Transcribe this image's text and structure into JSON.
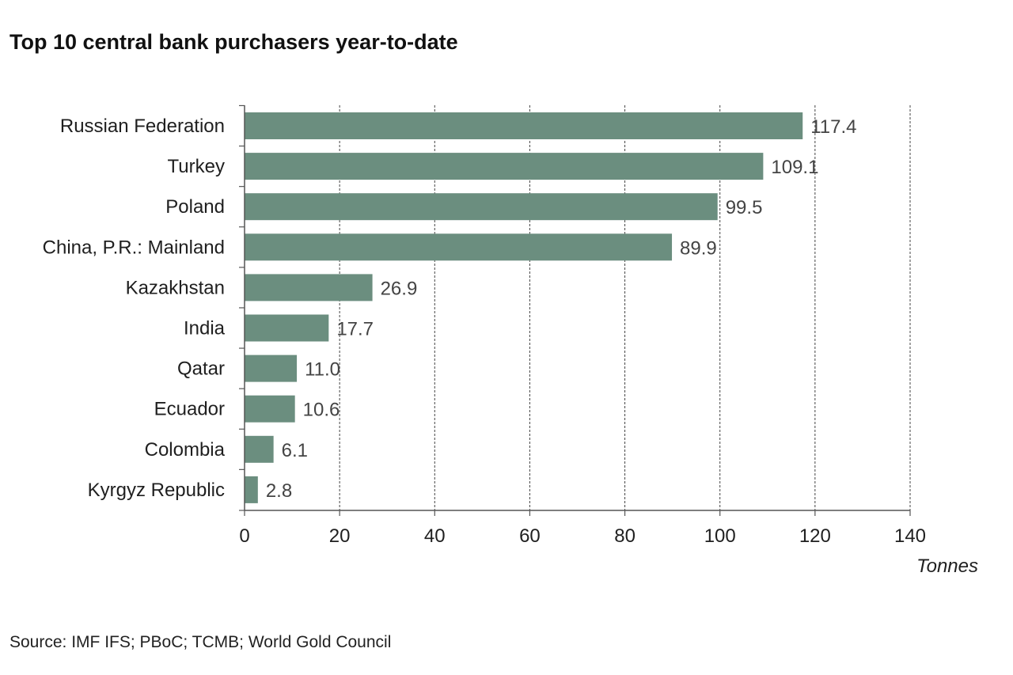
{
  "title": "Top 10 central bank purchasers year-to-date",
  "source": "Source: IMF IFS; PBoC; TCMB; World Gold Council",
  "colors": {
    "bar": "#6b8e7f",
    "grid": "#444444",
    "axis": "#555555"
  },
  "chart_data": {
    "type": "bar",
    "orientation": "horizontal",
    "categories": [
      "Russian Federation",
      "Turkey",
      "Poland",
      "China, P.R.: Mainland",
      "Kazakhstan",
      "India",
      "Qatar",
      "Ecuador",
      "Colombia",
      "Kyrgyz Republic"
    ],
    "values": [
      117.4,
      109.1,
      99.5,
      89.9,
      26.9,
      17.7,
      11.0,
      10.6,
      6.1,
      2.8
    ],
    "value_labels": [
      "117.4",
      "109.1",
      "99.5",
      "89.9",
      "26.9",
      "17.7",
      "11.0",
      "10.6",
      "6.1",
      "2.8"
    ],
    "xlabel": "Tonnes",
    "xlim": [
      0,
      140
    ],
    "xticks": [
      0,
      20,
      40,
      60,
      80,
      100,
      120,
      140
    ],
    "grid": "vertical dashed",
    "legend": "none"
  }
}
